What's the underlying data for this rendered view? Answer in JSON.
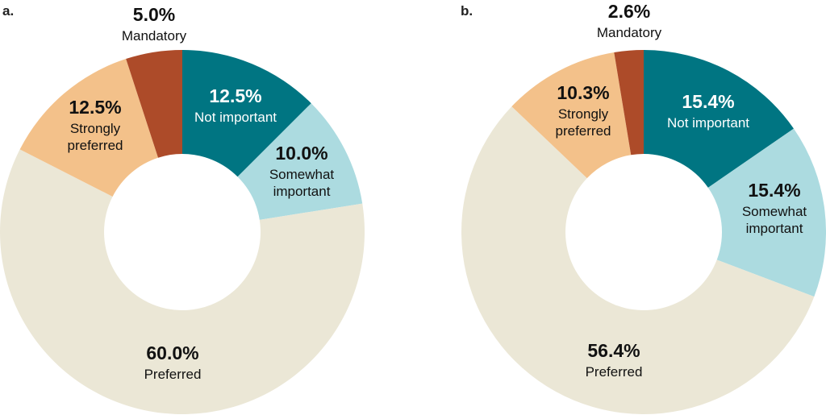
{
  "chart_data": [
    {
      "type": "pie",
      "panel_label": "a.",
      "start_category": "Not important",
      "slices": [
        {
          "category": "Not important",
          "value": 12.5,
          "value_label": "12.5%",
          "label_lines": [
            "Not important"
          ],
          "color": "#007582",
          "text_color": "#ffffff"
        },
        {
          "category": "Somewhat important",
          "value": 10.0,
          "value_label": "10.0%",
          "label_lines": [
            "Somewhat",
            "important"
          ],
          "color": "#acdbe0",
          "text_color": "#111111"
        },
        {
          "category": "Preferred",
          "value": 60.0,
          "value_label": "60.0%",
          "label_lines": [
            "Preferred"
          ],
          "color": "#ebe7d6",
          "text_color": "#111111"
        },
        {
          "category": "Strongly preferred",
          "value": 12.5,
          "value_label": "12.5%",
          "label_lines": [
            "Strongly",
            "preferred"
          ],
          "color": "#f3c18a",
          "text_color": "#111111"
        },
        {
          "category": "Mandatory",
          "value": 5.0,
          "value_label": "5.0%",
          "label_lines": [
            "Mandatory"
          ],
          "color": "#ad4b29",
          "text_color": "#111111"
        }
      ]
    },
    {
      "type": "pie",
      "panel_label": "b.",
      "start_category": "Not important",
      "slices": [
        {
          "category": "Not important",
          "value": 15.4,
          "value_label": "15.4%",
          "label_lines": [
            "Not important"
          ],
          "color": "#007582",
          "text_color": "#ffffff"
        },
        {
          "category": "Somewhat important",
          "value": 15.4,
          "value_label": "15.4%",
          "label_lines": [
            "Somewhat",
            "important"
          ],
          "color": "#acdbe0",
          "text_color": "#111111"
        },
        {
          "category": "Preferred",
          "value": 56.4,
          "value_label": "56.4%",
          "label_lines": [
            "Preferred"
          ],
          "color": "#ebe7d6",
          "text_color": "#111111"
        },
        {
          "category": "Strongly preferred",
          "value": 10.3,
          "value_label": "10.3%",
          "label_lines": [
            "Strongly",
            "preferred"
          ],
          "color": "#f3c18a",
          "text_color": "#111111"
        },
        {
          "category": "Mandatory",
          "value": 2.6,
          "value_label": "2.6%",
          "label_lines": [
            "Mandatory"
          ],
          "color": "#ad4b29",
          "text_color": "#111111"
        }
      ]
    }
  ]
}
